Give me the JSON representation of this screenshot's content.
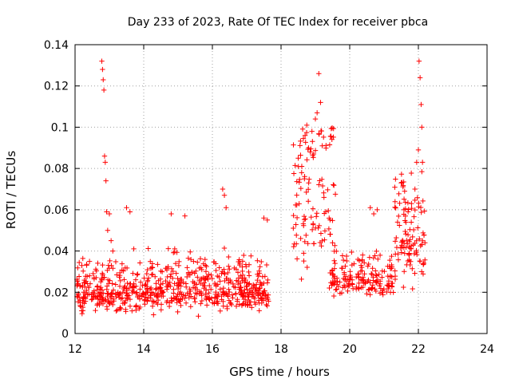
{
  "chart_data": {
    "type": "scatter",
    "title": "Day 233 of 2023, Rate Of TEC Index for receiver pbca",
    "xlabel": "GPS time / hours",
    "ylabel": "ROTI / TECUs",
    "xlim": [
      12,
      24
    ],
    "ylim": [
      0,
      0.14
    ],
    "x_ticks": [
      12,
      14,
      16,
      18,
      20,
      22,
      24
    ],
    "x_tick_labels": [
      "12",
      "14",
      "16",
      "18",
      "20",
      "22",
      "24"
    ],
    "y_ticks": [
      0,
      0.02,
      0.04,
      0.06,
      0.08,
      0.1,
      0.12,
      0.14
    ],
    "y_tick_labels": [
      "0",
      "0.02",
      "0.04",
      "0.06",
      "0.08",
      "0.1",
      "0.12",
      "0.14"
    ],
    "grid": true,
    "marker": "plus",
    "color": "#ff0000",
    "point_count": 1150,
    "clusters": [
      {
        "range": [
          12.05,
          17.65
        ],
        "n": 700,
        "center": 0.02,
        "spread": 0.007,
        "cap": 0.06
      },
      {
        "range": [
          18.35,
          19.6
        ],
        "n": 110,
        "center": 0.06,
        "spread": 0.024,
        "cap": 0.1
      },
      {
        "range": [
          19.4,
          21.3
        ],
        "n": 170,
        "center": 0.026,
        "spread": 0.006,
        "cap": 0.045
      },
      {
        "range": [
          21.3,
          22.2
        ],
        "n": 110,
        "center": 0.045,
        "spread": 0.015,
        "cap": 0.08
      }
    ],
    "series": [
      {
        "name": "ROTI",
        "x": [
          12.78,
          12.8,
          12.82,
          12.84,
          12.86,
          12.88,
          12.9,
          12.92,
          12.95,
          13.0,
          13.05,
          13.1,
          18.5,
          18.6,
          18.7,
          18.75,
          18.8,
          18.85,
          18.9,
          18.95,
          19.0,
          19.05,
          19.1,
          19.15,
          19.2,
          19.25,
          21.5,
          21.6,
          21.7,
          21.8,
          21.9,
          21.95,
          22.0,
          22.02,
          22.05,
          22.08,
          22.1,
          22.12,
          16.3,
          16.35,
          16.4,
          15.2,
          14.8,
          17.5,
          17.6,
          20.6,
          20.7,
          20.8,
          13.5,
          13.6
        ],
        "y": [
          0.132,
          0.128,
          0.123,
          0.118,
          0.086,
          0.083,
          0.074,
          0.059,
          0.05,
          0.058,
          0.045,
          0.04,
          0.085,
          0.078,
          0.096,
          0.101,
          0.09,
          0.088,
          0.098,
          0.087,
          0.104,
          0.107,
          0.126,
          0.112,
          0.091,
          0.066,
          0.073,
          0.069,
          0.059,
          0.063,
          0.07,
          0.083,
          0.089,
          0.132,
          0.124,
          0.111,
          0.1,
          0.083,
          0.07,
          0.067,
          0.061,
          0.057,
          0.058,
          0.056,
          0.055,
          0.061,
          0.058,
          0.06,
          0.061,
          0.059
        ]
      }
    ]
  }
}
